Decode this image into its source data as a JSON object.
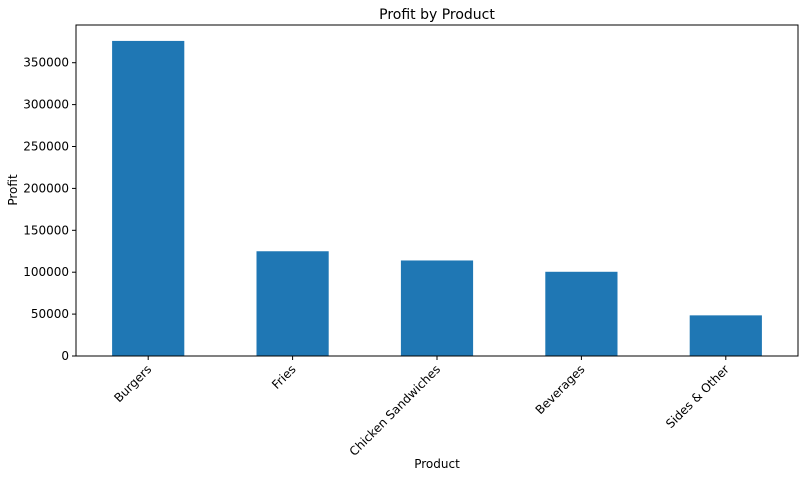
{
  "chart_data": {
    "type": "bar",
    "title": "Profit by Product",
    "xlabel": "Product",
    "ylabel": "Profit",
    "categories": [
      "Burgers",
      "Fries",
      "Chicken Sandwiches",
      "Beverages",
      "Sides & Other"
    ],
    "values": [
      376000,
      125000,
      114000,
      100500,
      48500
    ],
    "ylim": [
      0,
      395000
    ],
    "yticks": [
      0,
      50000,
      100000,
      150000,
      200000,
      250000,
      300000,
      350000
    ],
    "ytick_labels": [
      "0",
      "50000",
      "100000",
      "150000",
      "200000",
      "250000",
      "300000",
      "350000"
    ],
    "bar_color": "#1f77b4",
    "grid": false,
    "legend": false
  }
}
